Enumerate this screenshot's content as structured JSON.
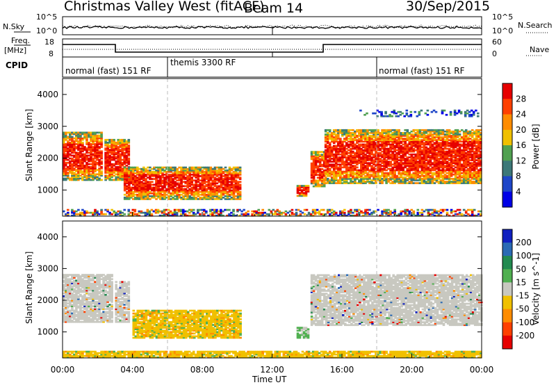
{
  "header": {
    "title": "Christmas Valley West (fitACF)",
    "beam": "Beam 14",
    "date": "30/Sep/2015"
  },
  "top_panel": {
    "nsky_label": "N.Sky",
    "nsearch_label": "N.Search",
    "left_ticks": [
      "10^5",
      "10^0"
    ],
    "right_ticks": [
      "10^5",
      "10^0"
    ]
  },
  "freq_panel": {
    "label_line1": "Freq.",
    "label_line2": "[MHz]",
    "left_ticks": [
      "18",
      "8"
    ],
    "right_ticks": [
      "60",
      "0"
    ],
    "nave_label": "Nave"
  },
  "cpid": {
    "label": "CPID",
    "segments": [
      {
        "text": "normal (fast) 151 RF",
        "start_hour": 0
      },
      {
        "text": "themis 3300 RF",
        "start_hour": 6
      },
      {
        "text": "normal (fast) 151 RF",
        "start_hour": 18
      }
    ]
  },
  "colors": {
    "power": [
      "#0000e6",
      "#1e46c8",
      "#3c7878",
      "#50a050",
      "#f0c000",
      "#ff8c00",
      "#ff4000",
      "#e60000"
    ],
    "velocity": [
      "#e60000",
      "#ff4000",
      "#ff8c00",
      "#f0c000",
      "#c8c8c0",
      "#50b050",
      "#228a50",
      "#2a6ab4",
      "#1020c0"
    ]
  },
  "chart_data": [
    {
      "type": "heatmap",
      "name": "power",
      "ylabel": "Slant Range [km]",
      "xlabel": "Time UT",
      "x_ticks": [
        "00:00",
        "04:00",
        "08:00",
        "12:00",
        "16:00",
        "20:00",
        "00:00"
      ],
      "xlim_hours": [
        0,
        24
      ],
      "y_ticks": [
        1000,
        2000,
        3000,
        4000
      ],
      "ylim_km": [
        180,
        4500
      ],
      "colorbar_label": "Power [dB]",
      "colorbar_ticks": [
        "28",
        "24",
        "20",
        "16",
        "12",
        "8",
        "4"
      ],
      "regions": [
        {
          "t0": 0.0,
          "t1": 2.2,
          "r0": 1300,
          "r1": 2800,
          "level": "high"
        },
        {
          "t0": 2.4,
          "t1": 3.8,
          "r0": 1300,
          "r1": 2600,
          "level": "high"
        },
        {
          "t0": 3.5,
          "t1": 10.2,
          "r0": 700,
          "r1": 1700,
          "level": "high"
        },
        {
          "t0": 13.4,
          "t1": 14.0,
          "r0": 800,
          "r1": 1150,
          "level": "high"
        },
        {
          "t0": 14.2,
          "t1": 15.0,
          "r0": 1100,
          "r1": 2200,
          "level": "high"
        },
        {
          "t0": 15.0,
          "t1": 24.0,
          "r0": 1200,
          "r1": 2900,
          "level": "high"
        },
        {
          "t0": 17.0,
          "t1": 24.0,
          "r0": 3300,
          "r1": 3500,
          "level": "low"
        },
        {
          "t0": 0.0,
          "t1": 24.0,
          "r0": 180,
          "r1": 400,
          "level": "mixed"
        }
      ]
    },
    {
      "type": "heatmap",
      "name": "velocity",
      "ylabel": "Slant Range [km]",
      "xlabel": "Time UT",
      "x_ticks": [
        "00:00",
        "04:00",
        "08:00",
        "12:00",
        "16:00",
        "20:00",
        "00:00"
      ],
      "xlim_hours": [
        0,
        24
      ],
      "y_ticks": [
        1000,
        2000,
        3000,
        4000
      ],
      "ylim_km": [
        180,
        4500
      ],
      "colorbar_label": "Velocity [m s^-1]",
      "colorbar_ticks": [
        "200",
        "100",
        "50",
        "15",
        "-15",
        "-50",
        "-100",
        "-200"
      ],
      "regions": [
        {
          "t0": 0.0,
          "t1": 2.8,
          "r0": 1300,
          "r1": 2800,
          "level": "near_zero"
        },
        {
          "t0": 3.0,
          "t1": 3.8,
          "r0": 1300,
          "r1": 2600,
          "level": "near_zero"
        },
        {
          "t0": 4.0,
          "t1": 10.2,
          "r0": 800,
          "r1": 1700,
          "level": "negative"
        },
        {
          "t0": 13.4,
          "t1": 14.0,
          "r0": 800,
          "r1": 1150,
          "level": "positive"
        },
        {
          "t0": 14.2,
          "t1": 24.0,
          "r0": 1200,
          "r1": 2800,
          "level": "near_zero"
        },
        {
          "t0": 0.0,
          "t1": 24.0,
          "r0": 180,
          "r1": 400,
          "level": "negative"
        }
      ]
    }
  ]
}
